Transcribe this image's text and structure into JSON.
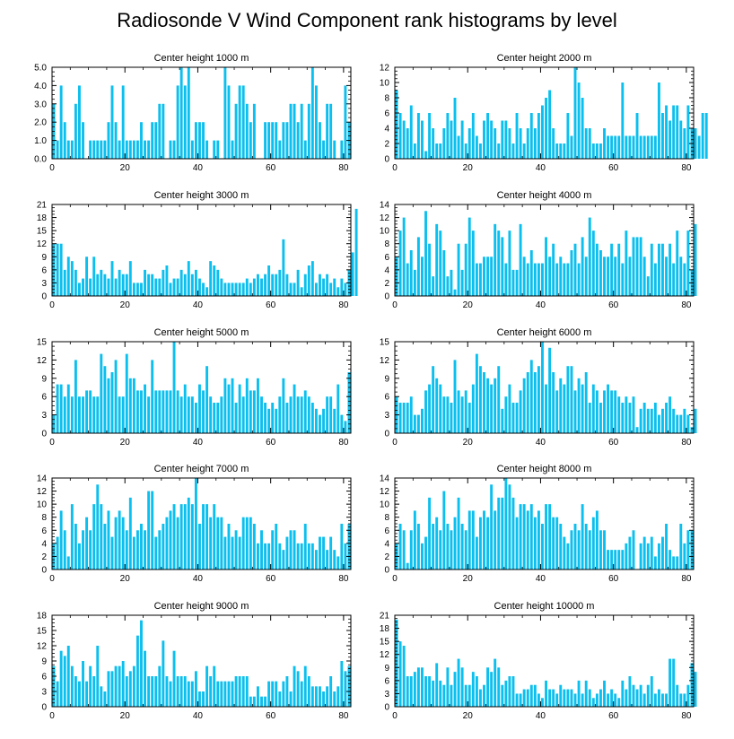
{
  "title": "Radiosonde V Wind Component rank histograms by level",
  "bar_color": "#0bbfee",
  "chart_data": [
    {
      "type": "bar",
      "title": "Center height 1000 m",
      "xlim": [
        0,
        82
      ],
      "ylim": [
        0,
        5
      ],
      "xticks": [
        0,
        20,
        40,
        60,
        80
      ],
      "yticks": [
        "0.0",
        "1.0",
        "2.0",
        "3.0",
        "4.0",
        "5.0"
      ],
      "values": [
        3,
        1,
        4,
        2,
        1,
        1,
        3,
        4,
        2,
        0,
        1,
        1,
        1,
        1,
        1,
        2,
        4,
        2,
        1,
        4,
        1,
        1,
        1,
        1,
        2,
        1,
        1,
        2,
        2,
        3,
        3,
        0,
        1,
        1,
        4,
        5,
        4,
        5,
        1,
        2,
        2,
        2,
        1,
        0,
        1,
        1,
        0,
        5,
        4,
        1,
        3,
        4,
        4,
        3,
        2,
        3,
        0,
        0,
        2,
        2,
        2,
        2,
        1,
        2,
        2,
        3,
        3,
        2,
        3,
        1,
        3,
        5,
        4,
        2,
        1,
        3,
        3,
        1,
        0,
        1,
        4,
        2
      ]
    },
    {
      "type": "bar",
      "title": "Center height 2000 m",
      "xlim": [
        0,
        82
      ],
      "ylim": [
        0,
        12
      ],
      "xticks": [
        0,
        20,
        40,
        60,
        80
      ],
      "yticks": [
        "0",
        "2",
        "4",
        "6",
        "8",
        "10",
        "12"
      ],
      "values": [
        9,
        6,
        5,
        4,
        7,
        2,
        6,
        5,
        1,
        6,
        4,
        2,
        2,
        4,
        6,
        5,
        8,
        3,
        5,
        2,
        4,
        6,
        3,
        2,
        5,
        6,
        5,
        4,
        2,
        5,
        5,
        4,
        2,
        6,
        4,
        2,
        4,
        6,
        4,
        6,
        7,
        8,
        9,
        4,
        2,
        2,
        2,
        6,
        3,
        12,
        10,
        8,
        4,
        4,
        2,
        2,
        2,
        4,
        3,
        3,
        3,
        3,
        10,
        3,
        3,
        3,
        6,
        3,
        3,
        3,
        3,
        3,
        10,
        6,
        7,
        5,
        7,
        7,
        5,
        4,
        7,
        4,
        4,
        3,
        6,
        6
      ]
    },
    {
      "type": "bar",
      "title": "Center height 3000 m",
      "xlim": [
        0,
        82
      ],
      "ylim": [
        0,
        21
      ],
      "xticks": [
        0,
        20,
        40,
        60,
        80
      ],
      "yticks": [
        "0",
        "3",
        "6",
        "9",
        "12",
        "15",
        "18",
        "21"
      ],
      "values": [
        12,
        12,
        12,
        6,
        9,
        8,
        6,
        3,
        4,
        9,
        4,
        9,
        5,
        6,
        5,
        4,
        8,
        4,
        6,
        5,
        5,
        8,
        3,
        3,
        3,
        6,
        5,
        5,
        4,
        4,
        6,
        7,
        3,
        4,
        4,
        6,
        5,
        8,
        5,
        6,
        4,
        3,
        2,
        8,
        7,
        6,
        4,
        3,
        3,
        3,
        3,
        3,
        3,
        4,
        3,
        4,
        5,
        4,
        5,
        7,
        5,
        5,
        6,
        13,
        5,
        3,
        3,
        6,
        2,
        5,
        7,
        8,
        3,
        5,
        4,
        5,
        3,
        4,
        2,
        4,
        3,
        6,
        10,
        20
      ]
    },
    {
      "type": "bar",
      "title": "Center height 4000 m",
      "xlim": [
        0,
        82
      ],
      "ylim": [
        0,
        14
      ],
      "xticks": [
        0,
        20,
        40,
        60,
        80
      ],
      "yticks": [
        "0",
        "2",
        "4",
        "6",
        "8",
        "10",
        "12",
        "14"
      ],
      "values": [
        6,
        10,
        12,
        5,
        7,
        4,
        9,
        6,
        13,
        8,
        3,
        11,
        10,
        7,
        3,
        4,
        1,
        8,
        4,
        8,
        12,
        10,
        5,
        5,
        6,
        6,
        6,
        11,
        10,
        9,
        5,
        10,
        4,
        4,
        11,
        6,
        5,
        7,
        5,
        5,
        5,
        9,
        6,
        8,
        5,
        6,
        5,
        5,
        7,
        8,
        5,
        9,
        6,
        12,
        10,
        8,
        7,
        6,
        6,
        8,
        6,
        8,
        5,
        10,
        6,
        9,
        9,
        9,
        6,
        3,
        8,
        5,
        8,
        8,
        6,
        8,
        5,
        10,
        6,
        5,
        10,
        4,
        11
      ]
    },
    {
      "type": "bar",
      "title": "Center height 5000 m",
      "xlim": [
        0,
        82
      ],
      "ylim": [
        0,
        15
      ],
      "xticks": [
        0,
        20,
        40,
        60,
        80
      ],
      "yticks": [
        "0",
        "3",
        "6",
        "9",
        "12",
        "15"
      ],
      "values": [
        3,
        8,
        8,
        6,
        8,
        6,
        12,
        6,
        6,
        7,
        7,
        6,
        6,
        13,
        11,
        9,
        10,
        12,
        6,
        6,
        13,
        9,
        9,
        7,
        7,
        8,
        6,
        12,
        7,
        7,
        7,
        7,
        7,
        15,
        7,
        6,
        8,
        6,
        6,
        5,
        8,
        7,
        11,
        6,
        5,
        5,
        6,
        9,
        8,
        9,
        5,
        8,
        6,
        9,
        7,
        7,
        9,
        6,
        5,
        4,
        5,
        4,
        6,
        9,
        5,
        6,
        8,
        6,
        6,
        7,
        6,
        5,
        4,
        3,
        4,
        6,
        6,
        4,
        8,
        3,
        2,
        10
      ]
    },
    {
      "type": "bar",
      "title": "Center height 6000 m",
      "xlim": [
        0,
        82
      ],
      "ylim": [
        0,
        15
      ],
      "xticks": [
        0,
        20,
        40,
        60,
        80
      ],
      "yticks": [
        "0",
        "3",
        "6",
        "9",
        "12",
        "15"
      ],
      "values": [
        6,
        5,
        5,
        5,
        6,
        3,
        3,
        4,
        7,
        8,
        11,
        9,
        8,
        6,
        6,
        5,
        12,
        7,
        6,
        7,
        5,
        8,
        13,
        11,
        10,
        9,
        8,
        9,
        11,
        4,
        6,
        8,
        5,
        5,
        7,
        9,
        10,
        12,
        10,
        11,
        15,
        8,
        14,
        10,
        7,
        9,
        8,
        11,
        11,
        7,
        9,
        8,
        10,
        5,
        8,
        7,
        5,
        7,
        8,
        7,
        7,
        6,
        5,
        6,
        5,
        6,
        1,
        4,
        5,
        4,
        4,
        5,
        3,
        4,
        5,
        6,
        4,
        3,
        3,
        4,
        3,
        1,
        4
      ]
    },
    {
      "type": "bar",
      "title": "Center height 7000 m",
      "xlim": [
        0,
        82
      ],
      "ylim": [
        0,
        14
      ],
      "xticks": [
        0,
        20,
        40,
        60,
        80
      ],
      "yticks": [
        "0",
        "2",
        "4",
        "6",
        "8",
        "10",
        "12",
        "14"
      ],
      "values": [
        4,
        5,
        9,
        6,
        2,
        10,
        7,
        4,
        6,
        8,
        6,
        10,
        13,
        10,
        7,
        9,
        5,
        8,
        9,
        8,
        6,
        11,
        5,
        6,
        7,
        6,
        12,
        12,
        5,
        6,
        7,
        8,
        9,
        10,
        8,
        10,
        10,
        11,
        10,
        14,
        7,
        10,
        10,
        8,
        10,
        8,
        8,
        5,
        7,
        5,
        6,
        5,
        8,
        8,
        8,
        7,
        4,
        6,
        4,
        4,
        6,
        7,
        4,
        3,
        5,
        6,
        6,
        4,
        4,
        7,
        4,
        4,
        3,
        5,
        5,
        3,
        5,
        3,
        2,
        7,
        4,
        7
      ]
    },
    {
      "type": "bar",
      "title": "Center height 8000 m",
      "xlim": [
        0,
        82
      ],
      "ylim": [
        0,
        14
      ],
      "xticks": [
        0,
        20,
        40,
        60,
        80
      ],
      "yticks": [
        "0",
        "2",
        "4",
        "6",
        "8",
        "10",
        "12",
        "14"
      ],
      "values": [
        4,
        7,
        6,
        1,
        6,
        9,
        7,
        4,
        5,
        11,
        7,
        8,
        6,
        12,
        7,
        6,
        8,
        11,
        7,
        6,
        9,
        9,
        5,
        8,
        9,
        8,
        13,
        9,
        11,
        11,
        14,
        13,
        11,
        8,
        10,
        10,
        9,
        10,
        8,
        9,
        7,
        10,
        10,
        8,
        8,
        7,
        5,
        4,
        6,
        7,
        6,
        10,
        7,
        6,
        8,
        9,
        6,
        6,
        3,
        3,
        3,
        3,
        3,
        4,
        5,
        6,
        0,
        4,
        5,
        4,
        5,
        2,
        4,
        5,
        7,
        3,
        2,
        2,
        7,
        4,
        6,
        6
      ]
    },
    {
      "type": "bar",
      "title": "Center height 9000 m",
      "xlim": [
        0,
        82
      ],
      "ylim": [
        0,
        18
      ],
      "xticks": [
        0,
        20,
        40,
        60,
        80
      ],
      "yticks": [
        "0",
        "3",
        "6",
        "9",
        "12",
        "15",
        "18"
      ],
      "values": [
        8,
        5,
        11,
        10,
        12,
        8,
        6,
        5,
        9,
        5,
        8,
        6,
        12,
        4,
        3,
        7,
        7,
        8,
        8,
        9,
        6,
        7,
        8,
        14,
        17,
        11,
        6,
        6,
        6,
        8,
        13,
        6,
        5,
        11,
        6,
        6,
        6,
        5,
        5,
        7,
        3,
        3,
        8,
        6,
        8,
        5,
        5,
        5,
        5,
        5,
        6,
        6,
        6,
        6,
        2,
        2,
        4,
        2,
        2,
        5,
        5,
        5,
        3,
        5,
        6,
        3,
        8,
        7,
        5,
        8,
        6,
        4,
        4,
        4,
        3,
        4,
        6,
        3,
        4,
        9,
        7,
        8
      ]
    },
    {
      "type": "bar",
      "title": "Center height 10000 m",
      "xlim": [
        0,
        82
      ],
      "ylim": [
        0,
        21
      ],
      "xticks": [
        0,
        20,
        40,
        60,
        80
      ],
      "yticks": [
        "0",
        "3",
        "6",
        "9",
        "12",
        "15",
        "18",
        "21"
      ],
      "values": [
        20,
        15,
        14,
        7,
        7,
        8,
        9,
        9,
        7,
        7,
        6,
        10,
        6,
        5,
        9,
        5,
        8,
        11,
        9,
        5,
        5,
        8,
        7,
        4,
        5,
        9,
        8,
        11,
        9,
        5,
        6,
        7,
        7,
        3,
        3,
        4,
        4,
        5,
        5,
        3,
        2,
        6,
        4,
        4,
        3,
        5,
        4,
        4,
        4,
        3,
        6,
        3,
        6,
        4,
        2,
        3,
        4,
        6,
        3,
        4,
        3,
        2,
        6,
        4,
        7,
        5,
        4,
        5,
        3,
        5,
        7,
        3,
        4,
        3,
        3,
        11,
        11,
        5,
        3,
        3,
        5,
        10,
        8
      ]
    }
  ]
}
